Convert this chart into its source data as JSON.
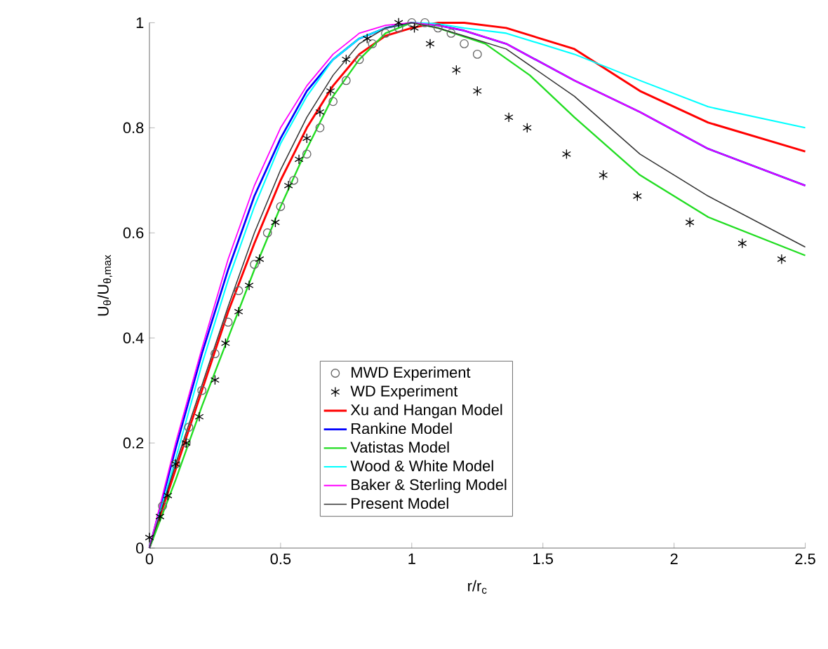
{
  "chart_data": {
    "type": "line",
    "xlabel": "r/r$_{c}$",
    "ylabel": "U$_{θ}$/U$_{θ,max}$",
    "xlim": [
      0,
      2.5
    ],
    "ylim": [
      0,
      1
    ],
    "xticks": [
      0,
      0.5,
      1,
      1.5,
      2,
      2.5
    ],
    "yticks": [
      0,
      0.2,
      0.4,
      0.6,
      0.8,
      1
    ],
    "legend": "bottom",
    "series": [
      {
        "name": "MWD Experiment",
        "type": "scatter",
        "marker": "circle",
        "color": "#666666",
        "x": [
          0.05,
          0.1,
          0.14,
          0.15,
          0.2,
          0.25,
          0.3,
          0.34,
          0.4,
          0.45,
          0.5,
          0.55,
          0.6,
          0.65,
          0.7,
          0.75,
          0.8,
          0.85,
          0.9,
          0.95,
          1.0,
          1.05,
          1.1,
          1.15,
          1.2,
          1.25
        ],
        "values": [
          0.08,
          0.16,
          0.2,
          0.23,
          0.3,
          0.37,
          0.43,
          0.49,
          0.54,
          0.6,
          0.65,
          0.7,
          0.75,
          0.8,
          0.85,
          0.89,
          0.93,
          0.96,
          0.98,
          0.99,
          1.0,
          1.0,
          0.99,
          0.98,
          0.96,
          0.94
        ]
      },
      {
        "name": "WD Experiment",
        "type": "scatter",
        "marker": "cross",
        "color": "#000000",
        "x": [
          0.0,
          0.04,
          0.07,
          0.1,
          0.14,
          0.19,
          0.25,
          0.29,
          0.34,
          0.38,
          0.42,
          0.48,
          0.53,
          0.57,
          0.6,
          0.65,
          0.69,
          0.75,
          0.83,
          0.95,
          1.01,
          1.07,
          1.17,
          1.25,
          1.37,
          1.44,
          1.59,
          1.73,
          1.86,
          2.06,
          2.26,
          2.41
        ],
        "values": [
          0.02,
          0.06,
          0.1,
          0.16,
          0.2,
          0.25,
          0.32,
          0.39,
          0.45,
          0.5,
          0.55,
          0.62,
          0.69,
          0.74,
          0.78,
          0.83,
          0.87,
          0.93,
          0.97,
          1.0,
          0.99,
          0.96,
          0.91,
          0.87,
          0.82,
          0.8,
          0.75,
          0.71,
          0.67,
          0.62,
          0.58,
          0.55
        ]
      },
      {
        "name": "Xu and Hangan Model",
        "color": "#ff0000",
        "x": [
          0,
          0.1,
          0.2,
          0.3,
          0.4,
          0.5,
          0.6,
          0.7,
          0.8,
          0.9,
          1.0,
          1.1,
          1.2,
          1.36,
          1.62,
          1.87,
          2.13,
          2.5
        ],
        "values": [
          0,
          0.15,
          0.3,
          0.45,
          0.58,
          0.7,
          0.8,
          0.88,
          0.94,
          0.975,
          0.99,
          1.0,
          1.0,
          0.99,
          0.95,
          0.87,
          0.81,
          0.755
        ]
      },
      {
        "name": "Rankine Model",
        "color": "#0000ff",
        "x": [
          0,
          0.1,
          0.2,
          0.3,
          0.4,
          0.5,
          0.6,
          0.7,
          0.8,
          0.9,
          1.0,
          1.1,
          1.2,
          1.36,
          1.62,
          1.87,
          2.13,
          2.5
        ],
        "values": [
          0,
          0.19,
          0.37,
          0.53,
          0.67,
          0.78,
          0.87,
          0.93,
          0.97,
          0.99,
          1.0,
          0.995,
          0.985,
          0.96,
          0.89,
          0.83,
          0.76,
          0.69
        ]
      },
      {
        "name": "Vatistas Model",
        "color": "#22dd22",
        "x": [
          0,
          0.1,
          0.2,
          0.3,
          0.4,
          0.5,
          0.6,
          0.7,
          0.8,
          0.9,
          1.0,
          1.1,
          1.28,
          1.45,
          1.62,
          1.87,
          2.13,
          2.5
        ],
        "values": [
          0,
          0.13,
          0.27,
          0.4,
          0.53,
          0.65,
          0.76,
          0.86,
          0.93,
          0.98,
          1.0,
          0.99,
          0.96,
          0.9,
          0.82,
          0.71,
          0.63,
          0.557
        ]
      },
      {
        "name": "Wood & White Model",
        "color": "#00ffff",
        "x": [
          0,
          0.1,
          0.2,
          0.3,
          0.4,
          0.5,
          0.6,
          0.7,
          0.8,
          0.9,
          1.0,
          1.1,
          1.2,
          1.36,
          1.62,
          1.87,
          2.13,
          2.5
        ],
        "values": [
          0,
          0.17,
          0.35,
          0.51,
          0.65,
          0.77,
          0.86,
          0.93,
          0.97,
          0.99,
          1.0,
          0.998,
          0.99,
          0.98,
          0.94,
          0.89,
          0.84,
          0.8
        ]
      },
      {
        "name": "Baker & Sterling Model",
        "color": "#ff00ff",
        "x": [
          0,
          0.1,
          0.2,
          0.3,
          0.4,
          0.5,
          0.6,
          0.7,
          0.8,
          0.9,
          1.0,
          1.1,
          1.2,
          1.36,
          1.62,
          1.87,
          2.13,
          2.5
        ],
        "values": [
          0,
          0.2,
          0.38,
          0.55,
          0.69,
          0.8,
          0.88,
          0.94,
          0.98,
          0.995,
          1.0,
          0.995,
          0.985,
          0.96,
          0.89,
          0.83,
          0.76,
          0.69
        ]
      },
      {
        "name": "Present Model",
        "color": "#333333",
        "x": [
          0,
          0.1,
          0.2,
          0.3,
          0.4,
          0.5,
          0.6,
          0.7,
          0.8,
          0.9,
          1.0,
          1.1,
          1.2,
          1.36,
          1.62,
          1.87,
          2.13,
          2.5
        ],
        "values": [
          0,
          0.16,
          0.31,
          0.46,
          0.6,
          0.72,
          0.82,
          0.9,
          0.96,
          0.99,
          1.0,
          0.99,
          0.975,
          0.95,
          0.86,
          0.75,
          0.67,
          0.573
        ]
      }
    ]
  }
}
